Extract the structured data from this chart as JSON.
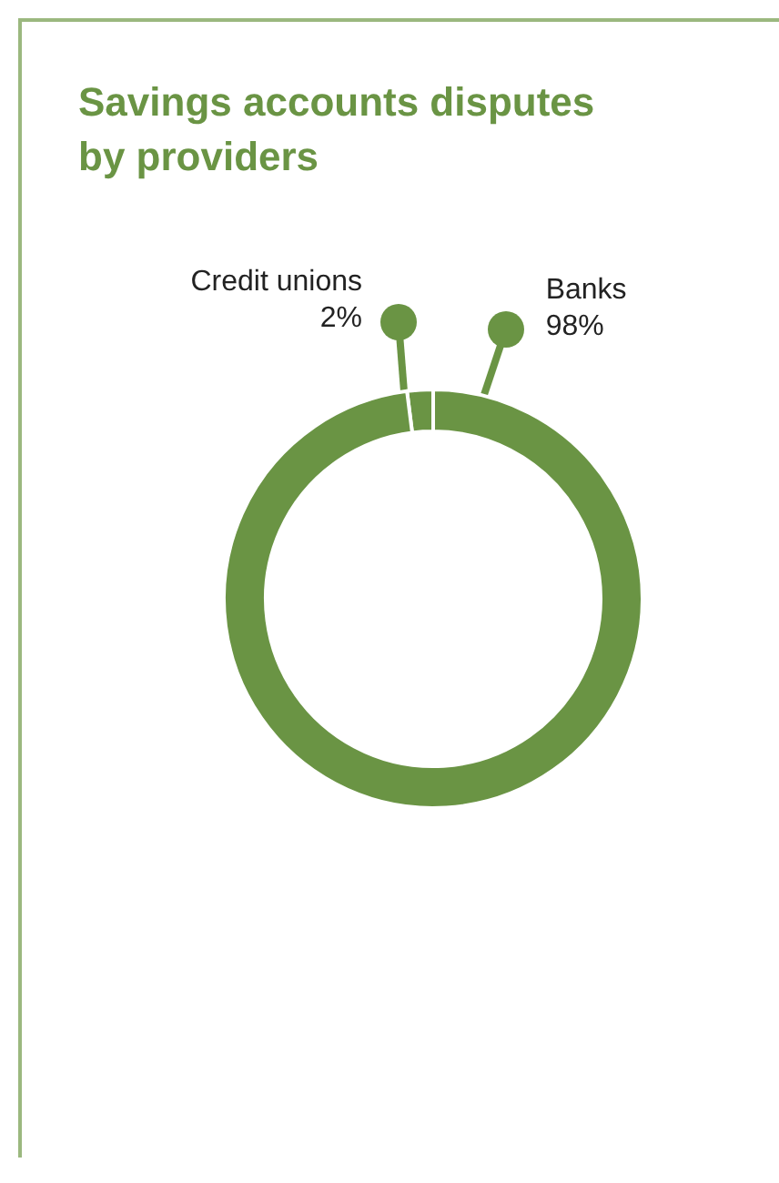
{
  "chart_data": {
    "type": "donut",
    "title": "Savings accounts disputes by providers",
    "categories": [
      "Credit unions",
      "Banks"
    ],
    "values": [
      2,
      98
    ],
    "value_labels": [
      "2%",
      "98%"
    ],
    "colors": [
      "#6a9444",
      "#6a9444"
    ],
    "legend": false
  }
}
